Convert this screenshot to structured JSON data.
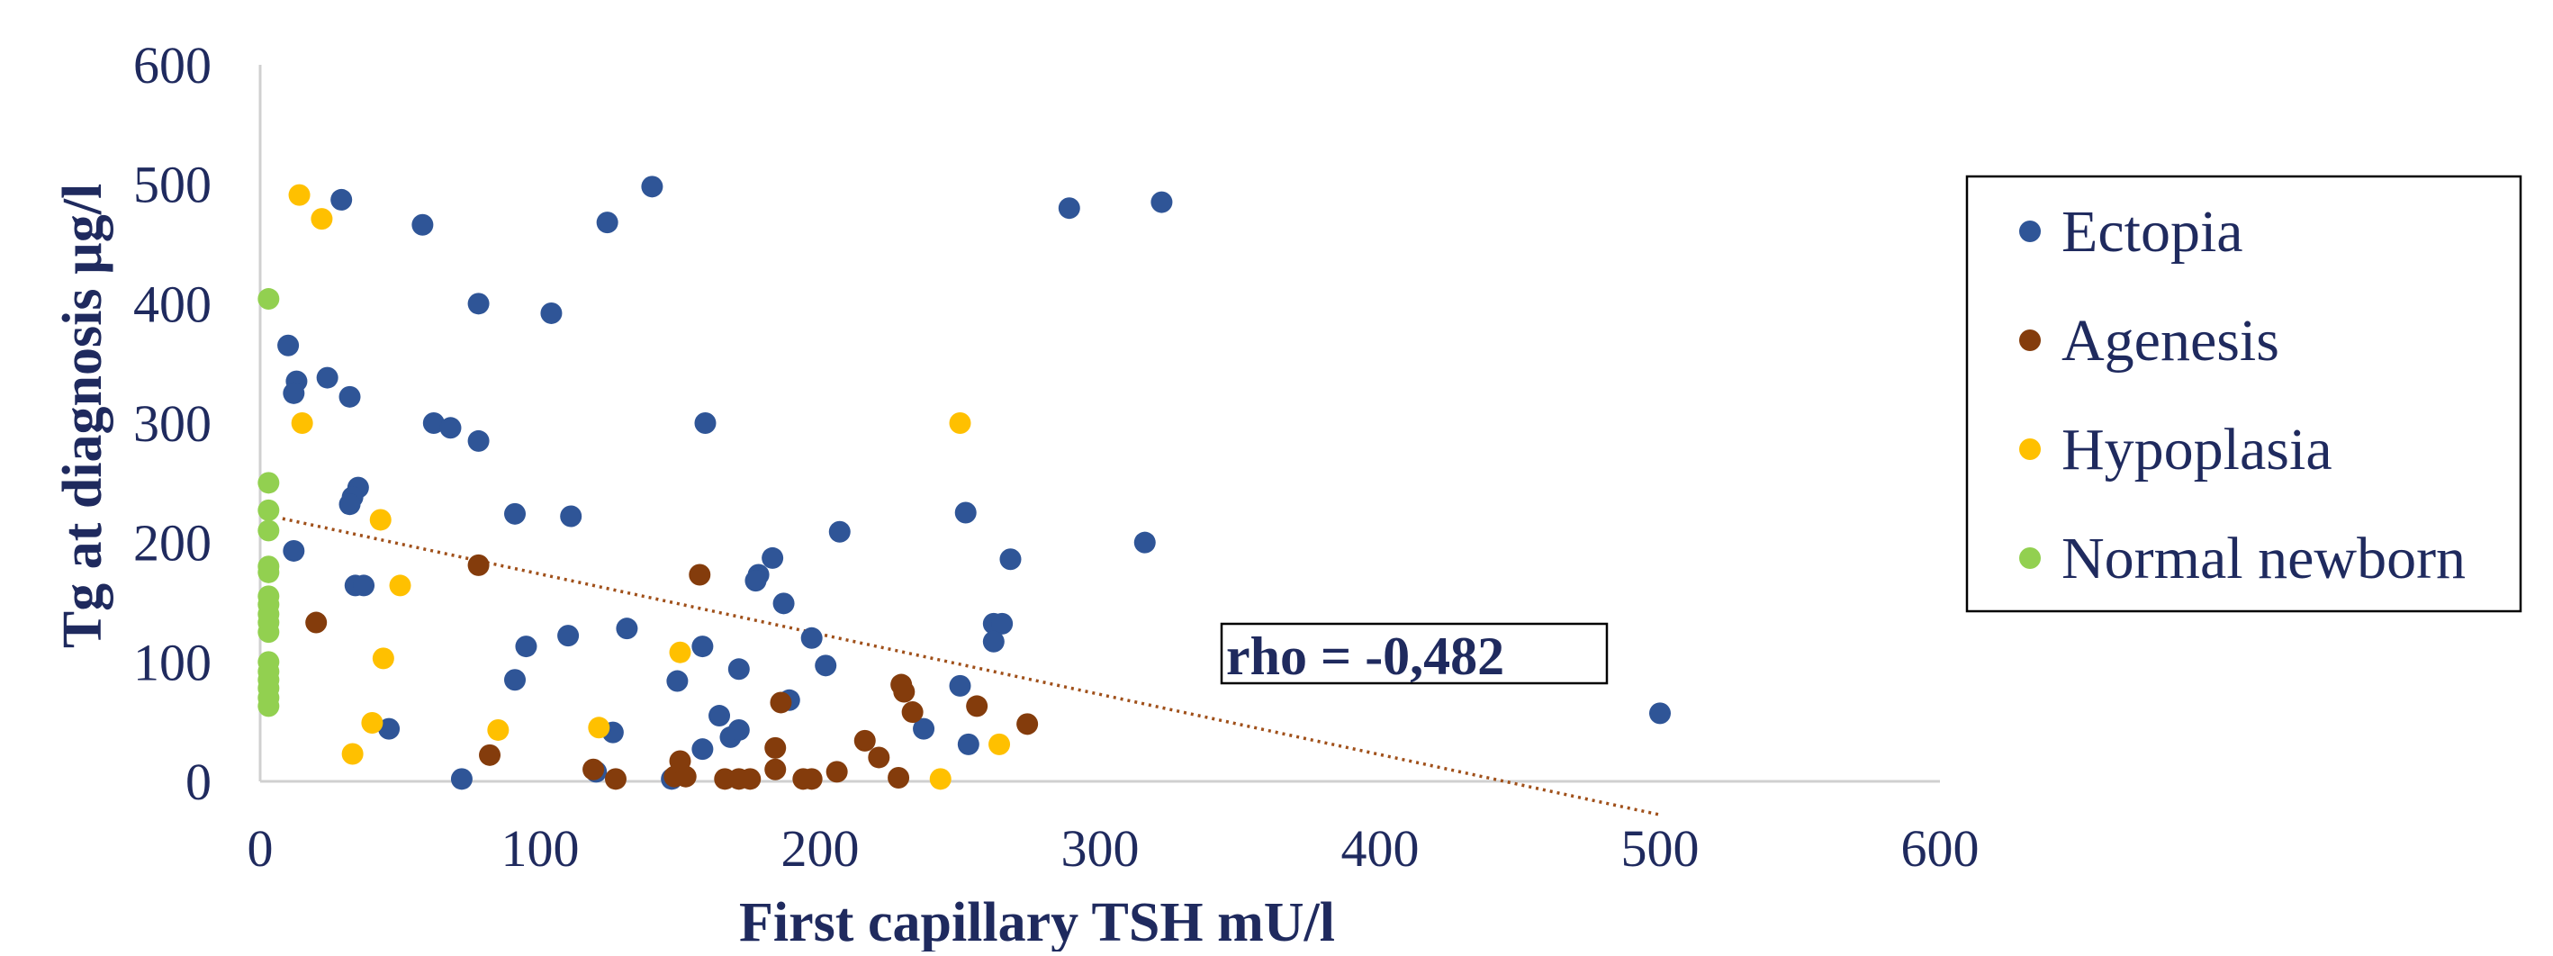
{
  "chart_data": {
    "type": "scatter",
    "xlabel": "First capillary TSH mU/l",
    "ylabel": "Tg at diagnosis µg/l",
    "xlim": [
      0,
      600
    ],
    "ylim": [
      0,
      600
    ],
    "xticks": [
      "0",
      "100",
      "200",
      "300",
      "400",
      "500",
      "600"
    ],
    "yticks": [
      "0",
      "100",
      "200",
      "300",
      "400",
      "500",
      "600"
    ],
    "grid": false,
    "legend_position": "right",
    "annotation": "rho = -0,482",
    "trendline": {
      "x": [
        8,
        500
      ],
      "y": [
        220,
        -28
      ],
      "style": "dotted",
      "color": "#a0501a"
    },
    "colors": {
      "text": "#1f2a5e",
      "axis": "#d0d0d0"
    },
    "series": [
      {
        "name": "Ectopia",
        "color": "#2f5597",
        "points": [
          [
            10,
            365
          ],
          [
            13,
            335
          ],
          [
            12,
            325
          ],
          [
            24,
            338
          ],
          [
            32,
            322
          ],
          [
            29,
            487
          ],
          [
            58,
            466
          ],
          [
            78,
            400
          ],
          [
            104,
            392
          ],
          [
            124,
            468
          ],
          [
            140,
            498
          ],
          [
            62,
            300
          ],
          [
            68,
            296
          ],
          [
            78,
            285
          ],
          [
            159,
            300
          ],
          [
            35,
            246
          ],
          [
            33,
            238
          ],
          [
            32,
            232
          ],
          [
            12,
            193
          ],
          [
            34,
            164
          ],
          [
            37,
            164
          ],
          [
            91,
            224
          ],
          [
            111,
            222
          ],
          [
            46,
            44
          ],
          [
            72,
            2
          ],
          [
            95,
            113
          ],
          [
            91,
            85
          ],
          [
            110,
            122
          ],
          [
            131,
            128
          ],
          [
            120,
            8
          ],
          [
            126,
            41
          ],
          [
            149,
            84
          ],
          [
            158,
            113
          ],
          [
            171,
            94
          ],
          [
            183,
            187
          ],
          [
            178,
            173
          ],
          [
            177,
            168
          ],
          [
            187,
            149
          ],
          [
            197,
            120
          ],
          [
            202,
            97
          ],
          [
            207,
            209
          ],
          [
            164,
            55
          ],
          [
            168,
            37
          ],
          [
            171,
            43
          ],
          [
            158,
            27
          ],
          [
            189,
            68
          ],
          [
            147,
            2
          ],
          [
            237,
            44
          ],
          [
            250,
            80
          ],
          [
            252,
            225
          ],
          [
            253,
            31
          ],
          [
            262,
            132
          ],
          [
            265,
            132
          ],
          [
            262,
            117
          ],
          [
            268,
            186
          ],
          [
            316,
            200
          ],
          [
            289,
            480
          ],
          [
            322,
            485
          ],
          [
            500,
            57
          ]
        ]
      },
      {
        "name": "Agenesis",
        "color": "#843c0c",
        "points": [
          [
            20,
            133
          ],
          [
            78,
            181
          ],
          [
            82,
            22
          ],
          [
            119,
            10
          ],
          [
            127,
            2
          ],
          [
            148,
            4
          ],
          [
            150,
            17
          ],
          [
            152,
            4
          ],
          [
            157,
            173
          ],
          [
            166,
            2
          ],
          [
            171,
            2
          ],
          [
            175,
            2
          ],
          [
            184,
            10
          ],
          [
            184,
            28
          ],
          [
            186,
            66
          ],
          [
            194,
            2
          ],
          [
            197,
            2
          ],
          [
            206,
            8
          ],
          [
            216,
            34
          ],
          [
            221,
            20
          ],
          [
            228,
            3
          ],
          [
            229,
            81
          ],
          [
            230,
            75
          ],
          [
            233,
            58
          ],
          [
            256,
            63
          ],
          [
            274,
            48
          ]
        ]
      },
      {
        "name": "Hypoplasia",
        "color": "#ffc000",
        "points": [
          [
            14,
            491
          ],
          [
            22,
            471
          ],
          [
            15,
            300
          ],
          [
            43,
            219
          ],
          [
            50,
            164
          ],
          [
            44,
            103
          ],
          [
            40,
            49
          ],
          [
            33,
            23
          ],
          [
            85,
            43
          ],
          [
            121,
            45
          ],
          [
            150,
            108
          ],
          [
            243,
            2
          ],
          [
            250,
            300
          ],
          [
            264,
            31
          ]
        ]
      },
      {
        "name": "Normal newborn",
        "color": "#92d050",
        "points": [
          [
            3,
            404
          ],
          [
            3,
            250
          ],
          [
            3,
            227
          ],
          [
            3,
            210
          ],
          [
            3,
            180
          ],
          [
            3,
            175
          ],
          [
            3,
            155
          ],
          [
            3,
            148
          ],
          [
            3,
            140
          ],
          [
            3,
            133
          ],
          [
            3,
            125
          ],
          [
            3,
            100
          ],
          [
            3,
            92
          ],
          [
            3,
            85
          ],
          [
            3,
            78
          ],
          [
            3,
            70
          ],
          [
            3,
            63
          ]
        ]
      }
    ]
  }
}
